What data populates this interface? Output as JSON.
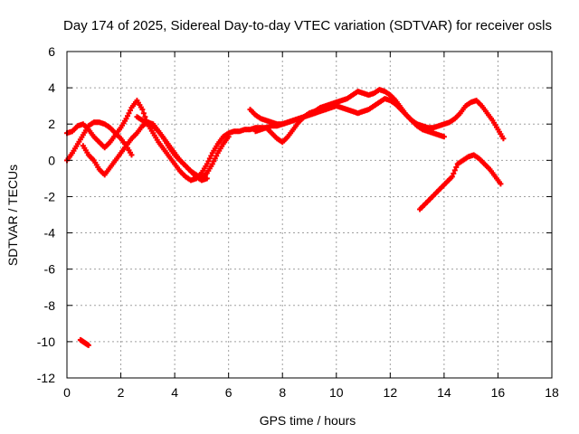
{
  "chart_data": {
    "type": "scatter",
    "title": "Day 174 of 2025, Sidereal Day-to-day VTEC variation (SDTVAR) for receiver osls",
    "xlabel": "GPS time / hours",
    "ylabel": "SDTVAR / TECUs",
    "xlim": [
      0,
      18
    ],
    "ylim": [
      -12,
      6
    ],
    "xticks": [
      0,
      2,
      4,
      6,
      8,
      10,
      12,
      14,
      16,
      18
    ],
    "yticks": [
      -12,
      -10,
      -8,
      -6,
      -4,
      -2,
      0,
      2,
      4,
      6
    ],
    "grid": true,
    "marker": "+",
    "color": "#ff0000",
    "series": [
      {
        "name": "track-1",
        "x": [
          0,
          0.2,
          0.4,
          0.6,
          0.8,
          1.0,
          1.2,
          1.4,
          1.6,
          1.8,
          2.0,
          2.2,
          2.4,
          2.6,
          2.8,
          3.0,
          3.2,
          3.4,
          3.6,
          3.8,
          4.0,
          4.2,
          4.4,
          4.6,
          4.8,
          5.0,
          5.2,
          5.4,
          5.6,
          5.8,
          6.0,
          6.2,
          6.4,
          6.6,
          6.8,
          7.0,
          7.2,
          7.4,
          7.6,
          7.8,
          8.0,
          8.2,
          8.4,
          8.6,
          8.8,
          9.0,
          9.2,
          9.4,
          9.6,
          9.8,
          10.0
        ],
        "y": [
          1.5,
          1.6,
          1.9,
          2.0,
          1.7,
          1.3,
          1.0,
          0.7,
          1.0,
          1.4,
          1.8,
          2.3,
          2.9,
          3.3,
          2.8,
          2.0,
          1.5,
          1.0,
          0.6,
          0.2,
          -0.2,
          -0.6,
          -0.9,
          -1.1,
          -1.0,
          -0.7,
          -0.2,
          0.4,
          0.9,
          1.3,
          1.5,
          1.6,
          1.6,
          1.7,
          1.7,
          1.8,
          1.8,
          1.8,
          1.9,
          1.9,
          2.0,
          2.1,
          2.2,
          2.3,
          2.4,
          2.5,
          2.6,
          2.7,
          2.8,
          3.0,
          3.2
        ]
      },
      {
        "name": "track-2",
        "x": [
          0.6,
          0.8,
          1.0,
          1.2,
          1.4,
          1.6,
          1.8,
          2.0,
          2.2,
          2.4,
          2.6,
          2.8,
          3.0,
          3.2,
          3.4,
          3.6,
          3.8,
          4.0,
          4.2,
          4.4,
          4.6,
          4.8,
          5.0,
          5.2,
          5.4,
          5.6,
          5.8,
          6.0
        ],
        "y": [
          0.8,
          0.3,
          0.0,
          -0.5,
          -0.8,
          -0.4,
          0.0,
          0.4,
          0.8,
          1.2,
          1.5,
          1.9,
          2.1,
          2.0,
          1.6,
          1.2,
          0.8,
          0.4,
          0.0,
          -0.3,
          -0.6,
          -0.8,
          -1.0,
          -0.7,
          -0.2,
          0.4,
          0.9,
          1.3
        ]
      },
      {
        "name": "track-3",
        "x": [
          2.6,
          2.8,
          3.0,
          3.2,
          3.4,
          3.6,
          3.8,
          4.0,
          4.2,
          4.4,
          4.6,
          4.8,
          5.0,
          5.2
        ],
        "y": [
          2.4,
          2.2,
          2.1,
          1.9,
          1.6,
          1.2,
          0.7,
          0.3,
          0.0,
          -0.3,
          -0.6,
          -0.9,
          -1.1,
          -1.0
        ]
      },
      {
        "name": "track-4",
        "x": [
          0.0,
          0.2,
          0.4,
          0.6,
          0.8,
          1.0,
          1.2,
          1.4,
          1.6,
          1.8,
          2.0,
          2.2,
          2.4
        ],
        "y": [
          0.0,
          0.4,
          0.9,
          1.4,
          1.9,
          2.1,
          2.1,
          2.0,
          1.8,
          1.5,
          1.2,
          0.8,
          0.3
        ]
      },
      {
        "name": "track-5",
        "x": [
          6.8,
          7.0,
          7.2,
          7.4,
          7.6,
          7.8,
          8.0,
          8.2,
          8.4,
          8.6,
          8.8,
          9.0,
          9.2,
          9.4,
          9.6,
          9.8,
          10.0,
          10.2,
          10.4,
          10.6,
          10.8,
          11.0,
          11.2,
          11.4,
          11.6,
          11.8,
          12.0,
          12.2,
          12.4,
          12.6,
          12.8,
          13.0,
          13.2,
          13.4,
          13.6,
          13.8,
          14.0,
          14.2,
          14.4,
          14.6,
          14.8,
          15.0,
          15.2,
          15.4,
          15.6,
          15.8,
          16.0,
          16.2
        ],
        "y": [
          2.8,
          2.5,
          2.3,
          2.2,
          2.1,
          2.0,
          2.0,
          2.1,
          2.2,
          2.3,
          2.4,
          2.6,
          2.7,
          2.9,
          3.0,
          3.1,
          3.2,
          3.3,
          3.4,
          3.6,
          3.8,
          3.7,
          3.6,
          3.7,
          3.9,
          3.8,
          3.6,
          3.3,
          2.9,
          2.5,
          2.2,
          2.0,
          1.9,
          1.8,
          1.8,
          1.9,
          2.0,
          2.1,
          2.3,
          2.6,
          3.0,
          3.2,
          3.3,
          3.0,
          2.6,
          2.2,
          1.7,
          1.2
        ]
      },
      {
        "name": "track-6",
        "x": [
          7.0,
          7.2,
          7.4,
          7.6,
          7.8,
          8.0,
          8.2,
          8.4,
          8.6,
          8.8,
          9.0,
          9.2,
          9.4,
          9.6,
          9.8,
          10.0,
          10.2,
          10.4,
          10.6,
          10.8,
          11.0,
          11.2,
          11.4,
          11.6,
          11.8,
          12.0,
          12.2,
          12.4,
          12.6,
          12.8,
          13.0,
          13.2,
          13.4,
          13.6,
          13.8,
          14.0
        ],
        "y": [
          1.6,
          1.7,
          1.8,
          1.5,
          1.2,
          1.0,
          1.3,
          1.7,
          2.1,
          2.4,
          2.6,
          2.7,
          2.8,
          2.8,
          2.9,
          3.0,
          2.9,
          2.8,
          2.7,
          2.6,
          2.7,
          2.8,
          3.0,
          3.2,
          3.4,
          3.3,
          3.1,
          2.8,
          2.5,
          2.2,
          1.9,
          1.7,
          1.6,
          1.5,
          1.4,
          1.3
        ]
      },
      {
        "name": "track-7",
        "x": [
          13.1,
          13.3,
          13.5,
          13.7,
          13.9,
          14.1,
          14.3,
          14.5,
          14.7,
          14.9,
          15.1,
          15.3,
          15.5,
          15.7,
          15.9,
          16.1
        ],
        "y": [
          -2.7,
          -2.4,
          -2.1,
          -1.8,
          -1.5,
          -1.2,
          -0.9,
          -0.2,
          0.0,
          0.2,
          0.3,
          0.1,
          -0.2,
          -0.5,
          -0.9,
          -1.3
        ]
      },
      {
        "name": "track-8",
        "x": [
          0.5,
          0.6,
          0.7,
          0.8
        ],
        "y": [
          -9.9,
          -10.0,
          -10.1,
          -10.2
        ]
      }
    ]
  }
}
